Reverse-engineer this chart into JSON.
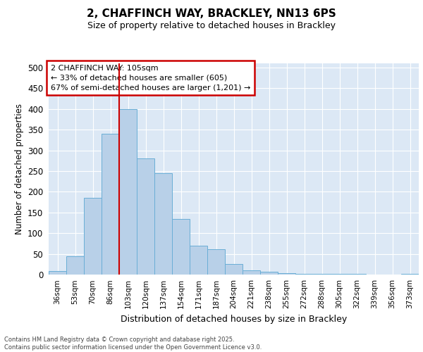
{
  "title1": "2, CHAFFINCH WAY, BRACKLEY, NN13 6PS",
  "title2": "Size of property relative to detached houses in Brackley",
  "xlabel": "Distribution of detached houses by size in Brackley",
  "ylabel": "Number of detached properties",
  "categories": [
    "36sqm",
    "53sqm",
    "70sqm",
    "86sqm",
    "103sqm",
    "120sqm",
    "137sqm",
    "154sqm",
    "171sqm",
    "187sqm",
    "204sqm",
    "221sqm",
    "238sqm",
    "255sqm",
    "272sqm",
    "288sqm",
    "305sqm",
    "322sqm",
    "339sqm",
    "356sqm",
    "373sqm"
  ],
  "values": [
    8,
    45,
    185,
    340,
    400,
    280,
    245,
    135,
    70,
    62,
    25,
    11,
    6,
    4,
    2,
    1,
    1,
    1,
    0,
    0,
    2
  ],
  "bar_color": "#b8d0e8",
  "bar_edge_color": "#6aaed6",
  "vline_x_index": 4,
  "vline_color": "#cc0000",
  "annotation_title": "2 CHAFFINCH WAY: 105sqm",
  "annotation_line1": "← 33% of detached houses are smaller (605)",
  "annotation_line2": "67% of semi-detached houses are larger (1,201) →",
  "annotation_box_edgecolor": "#cc0000",
  "ylim_max": 510,
  "yticks": [
    0,
    50,
    100,
    150,
    200,
    250,
    300,
    350,
    400,
    450,
    500
  ],
  "plot_bg": "#dce8f5",
  "grid_color": "#ffffff",
  "footer_line1": "Contains HM Land Registry data © Crown copyright and database right 2025.",
  "footer_line2": "Contains public sector information licensed under the Open Government Licence v3.0."
}
